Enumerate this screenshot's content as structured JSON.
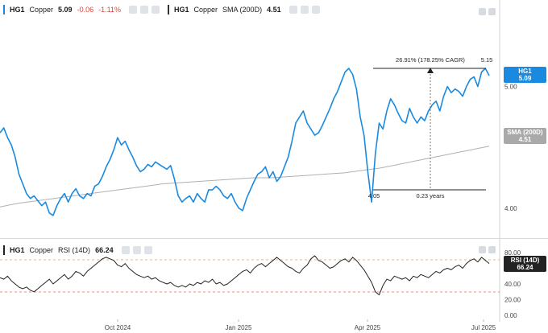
{
  "legend_main": {
    "symbol": "HG1",
    "name": "Copper",
    "last": "5.09",
    "change": "-0.06",
    "change_pct": "-1.11%"
  },
  "legend_sma": {
    "symbol": "HG1",
    "name": "Copper",
    "indicator": "SMA (200D)",
    "value": "4.51"
  },
  "legend_rsi": {
    "symbol": "HG1",
    "name": "Copper",
    "indicator": "RSI (14D)",
    "value": "66.24"
  },
  "tags": {
    "price_symbol": "HG1",
    "price_value": "5.09",
    "sma_label": "SMA (200D)",
    "sma_value": "4.51",
    "rsi_label": "RSI (14D)",
    "rsi_value": "66.24"
  },
  "measure": {
    "label": "26.91% (178.25% CAGR)",
    "low_label": "4.05",
    "high_label": "5.15",
    "duration_label": "0.23 years"
  },
  "colors": {
    "price": "#1a8ae0",
    "sma": "#b0b0b0",
    "rsi": "#222222",
    "negative": "#e0463a",
    "overbought": "#c9a96e",
    "oversold": "#e06a6a"
  },
  "chart_data": [
    {
      "type": "line",
      "x_ticks": [
        "Oct 2024",
        "Jan 2025",
        "Apr 2025",
        "Jul 2025"
      ],
      "y_ticks": [
        4.0,
        5.0
      ],
      "ylim": [
        3.78,
        5.58
      ],
      "series": [
        {
          "name": "HG1",
          "values": [
            4.62,
            4.66,
            4.58,
            4.52,
            4.42,
            4.28,
            4.2,
            4.12,
            4.08,
            4.1,
            4.06,
            4.02,
            4.05,
            3.96,
            3.94,
            4.02,
            4.08,
            4.12,
            4.05,
            4.12,
            4.16,
            4.1,
            4.08,
            4.12,
            4.1,
            4.18,
            4.2,
            4.26,
            4.34,
            4.4,
            4.48,
            4.58,
            4.52,
            4.55,
            4.48,
            4.42,
            4.35,
            4.3,
            4.32,
            4.36,
            4.34,
            4.38,
            4.36,
            4.34,
            4.32,
            4.35,
            4.24,
            4.1,
            4.05,
            4.08,
            4.1,
            4.05,
            4.12,
            4.08,
            4.05,
            4.15,
            4.15,
            4.18,
            4.15,
            4.1,
            4.08,
            4.12,
            4.05,
            4.0,
            3.98,
            4.08,
            4.15,
            4.22,
            4.28,
            4.3,
            4.34,
            4.25,
            4.3,
            4.22,
            4.26,
            4.34,
            4.42,
            4.55,
            4.7,
            4.75,
            4.8,
            4.7,
            4.65,
            4.6,
            4.62,
            4.68,
            4.75,
            4.82,
            4.9,
            4.96,
            5.04,
            5.12,
            5.15,
            5.1,
            4.98,
            4.75,
            4.6,
            4.3,
            4.05,
            4.45,
            4.7,
            4.65,
            4.8,
            4.9,
            4.85,
            4.78,
            4.72,
            4.7,
            4.82,
            4.75,
            4.7,
            4.75,
            4.72,
            4.8,
            4.85,
            4.88,
            4.8,
            4.92,
            5.0,
            4.95,
            4.98,
            4.96,
            4.92,
            5.0,
            5.06,
            5.08,
            5.0,
            5.12,
            5.15,
            5.09
          ]
        },
        {
          "name": "SMA (200D)",
          "values": [
            4.01,
            4.04,
            4.06,
            4.08,
            4.1,
            4.12,
            4.14,
            4.16,
            4.18,
            4.2,
            4.21,
            4.22,
            4.23,
            4.24,
            4.25,
            4.25,
            4.26,
            4.27,
            4.28,
            4.29,
            4.31,
            4.33,
            4.36,
            4.39,
            4.42,
            4.45,
            4.48,
            4.51
          ]
        }
      ]
    },
    {
      "type": "line",
      "title": "RSI (14D)",
      "y_ticks": [
        0.0,
        20.0,
        40.0,
        60.0,
        80.0
      ],
      "ylim": [
        0,
        80
      ],
      "reference_lines": [
        70,
        30
      ],
      "series": [
        {
          "name": "RSI (14D)",
          "values": [
            48,
            46,
            50,
            44,
            40,
            36,
            34,
            36,
            32,
            30,
            34,
            38,
            42,
            46,
            40,
            44,
            48,
            52,
            46,
            50,
            56,
            54,
            50,
            56,
            60,
            64,
            68,
            72,
            74,
            72,
            70,
            64,
            62,
            66,
            60,
            56,
            52,
            50,
            48,
            50,
            46,
            48,
            44,
            42,
            40,
            42,
            38,
            36,
            38,
            36,
            40,
            38,
            42,
            40,
            44,
            42,
            46,
            40,
            42,
            38,
            40,
            44,
            48,
            52,
            56,
            58,
            54,
            60,
            64,
            66,
            62,
            66,
            70,
            74,
            70,
            66,
            62,
            60,
            56,
            54,
            60,
            64,
            72,
            76,
            70,
            68,
            64,
            60,
            62,
            66,
            70,
            72,
            68,
            74,
            70,
            64,
            58,
            50,
            42,
            30,
            26,
            38,
            46,
            44,
            50,
            48,
            46,
            48,
            44,
            50,
            48,
            52,
            50,
            48,
            52,
            56,
            54,
            58,
            60,
            58,
            62,
            64,
            60,
            66,
            70,
            72,
            68,
            74,
            70,
            66
          ]
        }
      ]
    }
  ]
}
